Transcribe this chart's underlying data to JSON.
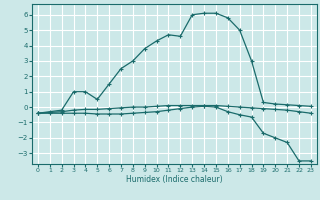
{
  "xlabel": "Humidex (Indice chaleur)",
  "bg_color": "#cce8e8",
  "grid_color": "#ffffff",
  "line_color": "#1a6b6b",
  "xlim": [
    -0.5,
    23.5
  ],
  "ylim": [
    -3.7,
    6.7
  ],
  "xticks": [
    0,
    1,
    2,
    3,
    4,
    5,
    6,
    7,
    8,
    9,
    10,
    11,
    12,
    13,
    14,
    15,
    16,
    17,
    18,
    19,
    20,
    21,
    22,
    23
  ],
  "yticks": [
    -3,
    -2,
    -1,
    0,
    1,
    2,
    3,
    4,
    5,
    6
  ],
  "s1_x": [
    0,
    1,
    2,
    3,
    4,
    5,
    6,
    7,
    8,
    9,
    10,
    11,
    12,
    13,
    14,
    15,
    16,
    17,
    18,
    19,
    20,
    21,
    22,
    23
  ],
  "s1_y": [
    -0.4,
    -0.35,
    -0.3,
    -0.2,
    -0.15,
    -0.15,
    -0.1,
    -0.05,
    0.0,
    0.0,
    0.05,
    0.1,
    0.1,
    0.1,
    0.1,
    0.1,
    0.05,
    0.0,
    -0.05,
    -0.1,
    -0.15,
    -0.2,
    -0.3,
    -0.4
  ],
  "s2_x": [
    0,
    2,
    3,
    4,
    5,
    6,
    7,
    8,
    9,
    10,
    11,
    12,
    13,
    14,
    15,
    16,
    17,
    18,
    19,
    20,
    21,
    22,
    23
  ],
  "s2_y": [
    -0.4,
    -0.2,
    1.0,
    1.0,
    0.5,
    1.5,
    2.5,
    3.0,
    3.8,
    4.3,
    4.7,
    4.6,
    6.0,
    6.1,
    6.1,
    5.8,
    5.0,
    3.0,
    0.3,
    0.2,
    0.15,
    0.1,
    0.05
  ],
  "s3_x": [
    0,
    1,
    2,
    3,
    4,
    5,
    6,
    7,
    8,
    9,
    10,
    11,
    12,
    13,
    14,
    15,
    16,
    17,
    18,
    19,
    20,
    21,
    22,
    23
  ],
  "s3_y": [
    -0.4,
    -0.4,
    -0.4,
    -0.4,
    -0.4,
    -0.45,
    -0.45,
    -0.45,
    -0.4,
    -0.35,
    -0.3,
    -0.2,
    -0.1,
    0.0,
    0.05,
    0.0,
    -0.3,
    -0.5,
    -0.65,
    -1.7,
    -2.0,
    -2.3,
    -3.5,
    -3.5
  ]
}
